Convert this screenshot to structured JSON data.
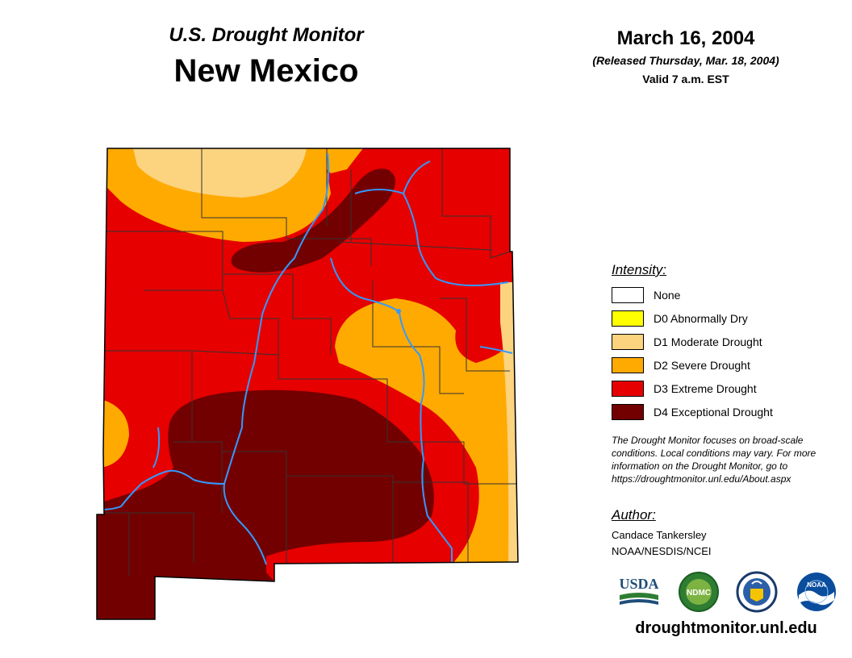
{
  "header": {
    "brand": "U.S. Drought Monitor",
    "state": "New Mexico",
    "date": "March 16, 2004",
    "released": "(Released Thursday, Mar. 18, 2004)",
    "valid": "Valid 7 a.m. EST"
  },
  "legend": {
    "title": "Intensity:",
    "items": [
      {
        "label": "None",
        "color": "#FFFFFF"
      },
      {
        "label": "D0 Abnormally Dry",
        "color": "#FFFF00"
      },
      {
        "label": "D1 Moderate Drought",
        "color": "#FCD37F"
      },
      {
        "label": "D2 Severe Drought",
        "color": "#FFAA00"
      },
      {
        "label": "D3 Extreme Drought",
        "color": "#E60000"
      },
      {
        "label": "D4 Exceptional Drought",
        "color": "#730000"
      }
    ]
  },
  "note": "The Drought Monitor focuses on broad-scale conditions. Local conditions may vary. For more information on the Drought Monitor, go to https://droughtmonitor.unl.edu/About.aspx",
  "author": {
    "title": "Author:",
    "name": "Candace Tankersley",
    "org": "NOAA/NESDIS/NCEI"
  },
  "logos": {
    "usda": "USDA",
    "ndmc": "NDMC",
    "noaa": "NOAA"
  },
  "url": "droughtmonitor.unl.edu",
  "colors": {
    "river": "#3399FF",
    "county_border": "#333333"
  }
}
